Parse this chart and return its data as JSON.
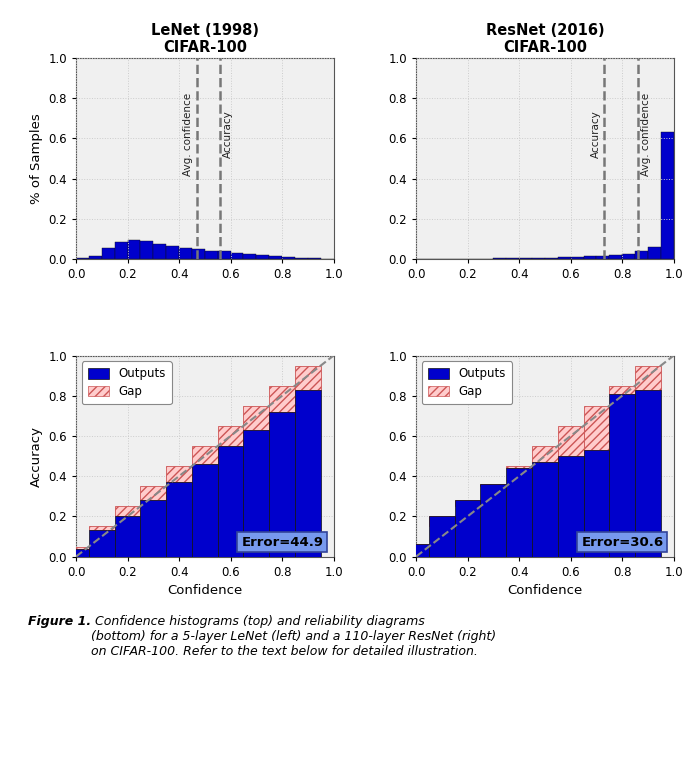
{
  "lenet_title": "LeNet (1998)\nCIFAR-100",
  "resnet_title": "ResNet (2016)\nCIFAR-100",
  "xlabel": "Confidence",
  "ylabel_top": "% of Samples",
  "ylabel_bottom": "Accuracy",
  "lenet_hist_vals": [
    0.003,
    0.015,
    0.055,
    0.085,
    0.095,
    0.09,
    0.075,
    0.065,
    0.055,
    0.048,
    0.042,
    0.038,
    0.032,
    0.025,
    0.018,
    0.014,
    0.01,
    0.007,
    0.004,
    0.002
  ],
  "resnet_hist_vals": [
    0.001,
    0.001,
    0.001,
    0.001,
    0.002,
    0.002,
    0.003,
    0.004,
    0.005,
    0.006,
    0.007,
    0.009,
    0.011,
    0.013,
    0.016,
    0.02,
    0.025,
    0.04,
    0.06,
    0.63
  ],
  "lenet_avg_conf": 0.468,
  "lenet_accuracy": 0.558,
  "resnet_accuracy": 0.728,
  "resnet_avg_conf": 0.862,
  "lenet_bar_accuracy": [
    0.04,
    0.13,
    0.2,
    0.28,
    0.37,
    0.46,
    0.55,
    0.63,
    0.72,
    0.83
  ],
  "resnet_bar_accuracy": [
    0.06,
    0.2,
    0.28,
    0.36,
    0.44,
    0.47,
    0.5,
    0.53,
    0.81,
    0.83
  ],
  "bin_centers": [
    0.05,
    0.15,
    0.25,
    0.35,
    0.45,
    0.55,
    0.65,
    0.75,
    0.85,
    0.95
  ],
  "bin_width": 0.1,
  "bar_color": "#0000CC",
  "gap_color": "#FFCCCC",
  "gap_hatch": "////",
  "gap_edge_color": "#CC5555",
  "diag_color": "#888888",
  "lenet_error": "Error=44.9",
  "resnet_error": "Error=30.6",
  "error_box_color": "#7799EE",
  "background_color": "#F0F0F0",
  "grid_color": "#CCCCCC"
}
